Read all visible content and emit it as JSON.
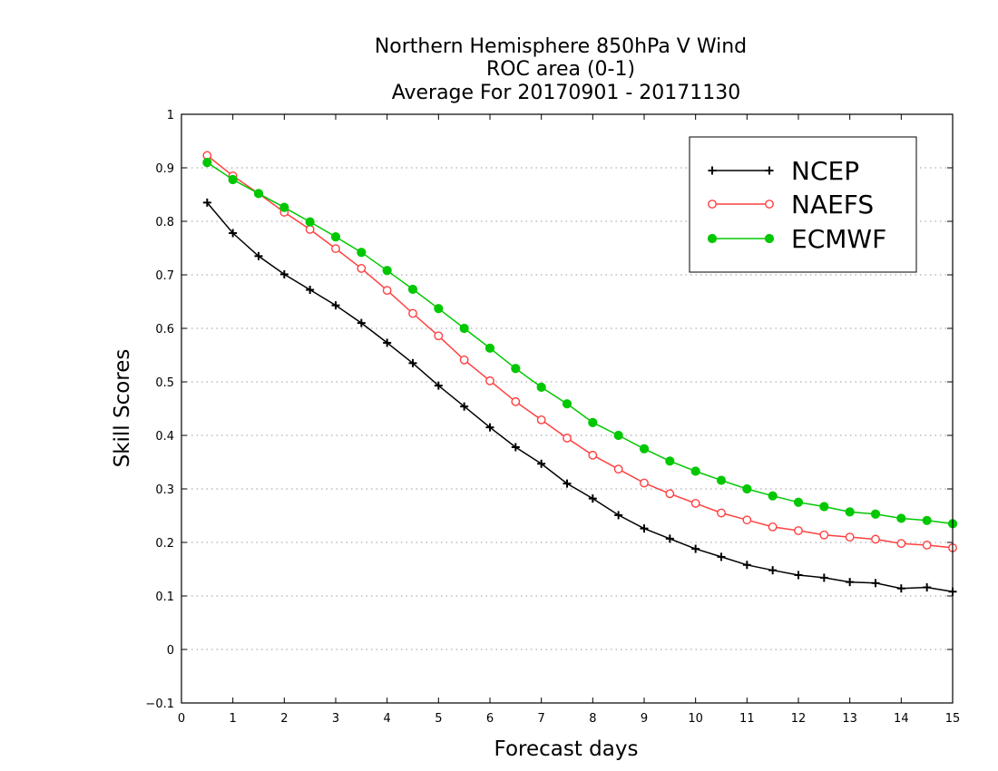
{
  "chart_data": {
    "type": "line",
    "title": [
      "Northern Hemisphere 850hPa V Wind",
      "ROC area (0-1)",
      "Average For 20170901 - 20171130"
    ],
    "xlabel": "Forecast days",
    "ylabel": "Skill Scores",
    "xlim": [
      0,
      15
    ],
    "ylim": [
      -0.1,
      1
    ],
    "x_ticks": [
      "0",
      "1",
      "2",
      "3",
      "4",
      "5",
      "6",
      "7",
      "8",
      "9",
      "10",
      "11",
      "12",
      "13",
      "14",
      "15"
    ],
    "y_ticks": [
      "−0.1",
      "0",
      "0.1",
      "0.2",
      "0.3",
      "0.4",
      "0.5",
      "0.6",
      "0.7",
      "0.8",
      "0.9",
      "1"
    ],
    "grid": "horizontal-dotted",
    "legend_position": "top-right",
    "x": [
      0.5,
      1,
      1.5,
      2,
      2.5,
      3,
      3.5,
      4,
      4.5,
      5,
      5.5,
      6,
      6.5,
      7,
      7.5,
      8,
      8.5,
      9,
      9.5,
      10,
      10.5,
      11,
      11.5,
      12,
      12.5,
      13,
      13.5,
      14,
      14.5,
      15
    ],
    "series": [
      {
        "name": "NCEP",
        "color": "#000000",
        "marker": "plus",
        "values": [
          0.835,
          0.778,
          0.735,
          0.701,
          0.672,
          0.643,
          0.61,
          0.573,
          0.535,
          0.493,
          0.454,
          0.415,
          0.378,
          0.347,
          0.31,
          0.282,
          0.251,
          0.226,
          0.207,
          0.188,
          0.173,
          0.158,
          0.148,
          0.139,
          0.134,
          0.126,
          0.124,
          0.114,
          0.116,
          0.108
        ]
      },
      {
        "name": "NAEFS",
        "color": "#ff4040",
        "marker": "open-circle",
        "values": [
          0.923,
          0.885,
          0.852,
          0.817,
          0.785,
          0.749,
          0.712,
          0.671,
          0.628,
          0.586,
          0.541,
          0.502,
          0.463,
          0.429,
          0.395,
          0.363,
          0.337,
          0.311,
          0.291,
          0.273,
          0.255,
          0.242,
          0.229,
          0.222,
          0.214,
          0.21,
          0.206,
          0.198,
          0.195,
          0.19
        ]
      },
      {
        "name": "ECMWF",
        "color": "#00c800",
        "marker": "filled-circle",
        "values": [
          0.91,
          0.878,
          0.852,
          0.826,
          0.799,
          0.771,
          0.742,
          0.708,
          0.673,
          0.637,
          0.6,
          0.563,
          0.525,
          0.49,
          0.459,
          0.424,
          0.4,
          0.375,
          0.352,
          0.333,
          0.316,
          0.3,
          0.287,
          0.275,
          0.267,
          0.257,
          0.253,
          0.245,
          0.241,
          0.235
        ]
      }
    ]
  }
}
